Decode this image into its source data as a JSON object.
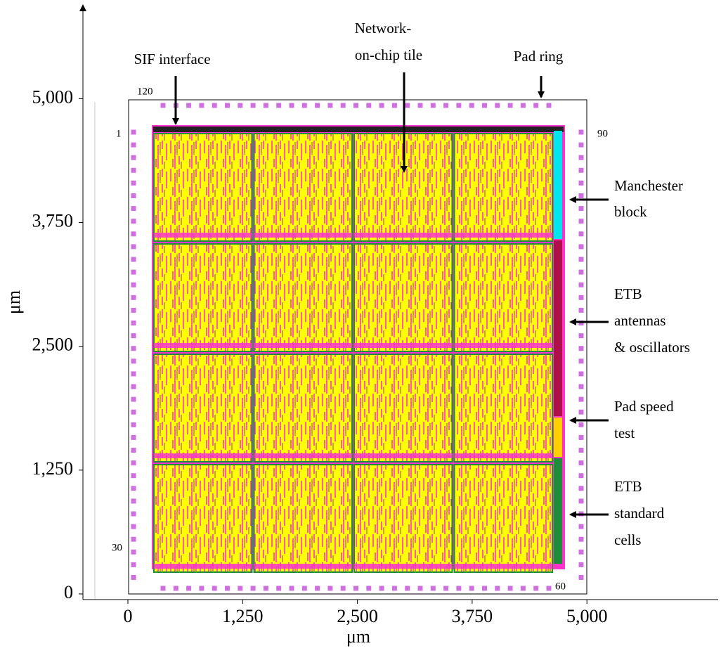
{
  "chart_data": {
    "type": "layout",
    "xlabel": "μm",
    "ylabel": "μm",
    "xlim": [
      -490,
      6430
    ],
    "ylim": [
      -57,
      5940
    ],
    "xticks": [
      0,
      {
        "value": 1250,
        "label": "1,250"
      },
      {
        "value": 2500,
        "label": "2,500"
      },
      {
        "value": 3750,
        "label": "3,750"
      },
      {
        "value": 5000,
        "label": "5,000"
      }
    ],
    "yticks": [
      0,
      {
        "value": 1250,
        "label": "1,250"
      },
      {
        "value": 2500,
        "label": "2,500"
      },
      {
        "value": 3750,
        "label": "3,750"
      },
      {
        "value": 5000,
        "label": "5,000"
      }
    ],
    "annotations": [
      [
        "SIF interface"
      ],
      [
        "Network-",
        "on-chip tile"
      ],
      [
        "Pad ring"
      ],
      [
        "Manchester",
        "block"
      ],
      [
        "ETB",
        "antennas",
        "& oscillators"
      ],
      [
        "Pad speed",
        "test"
      ],
      [
        "ETB",
        "standard",
        "cells"
      ]
    ],
    "pad_labels": [
      "120",
      "1",
      "90",
      "30",
      "60"
    ]
  }
}
